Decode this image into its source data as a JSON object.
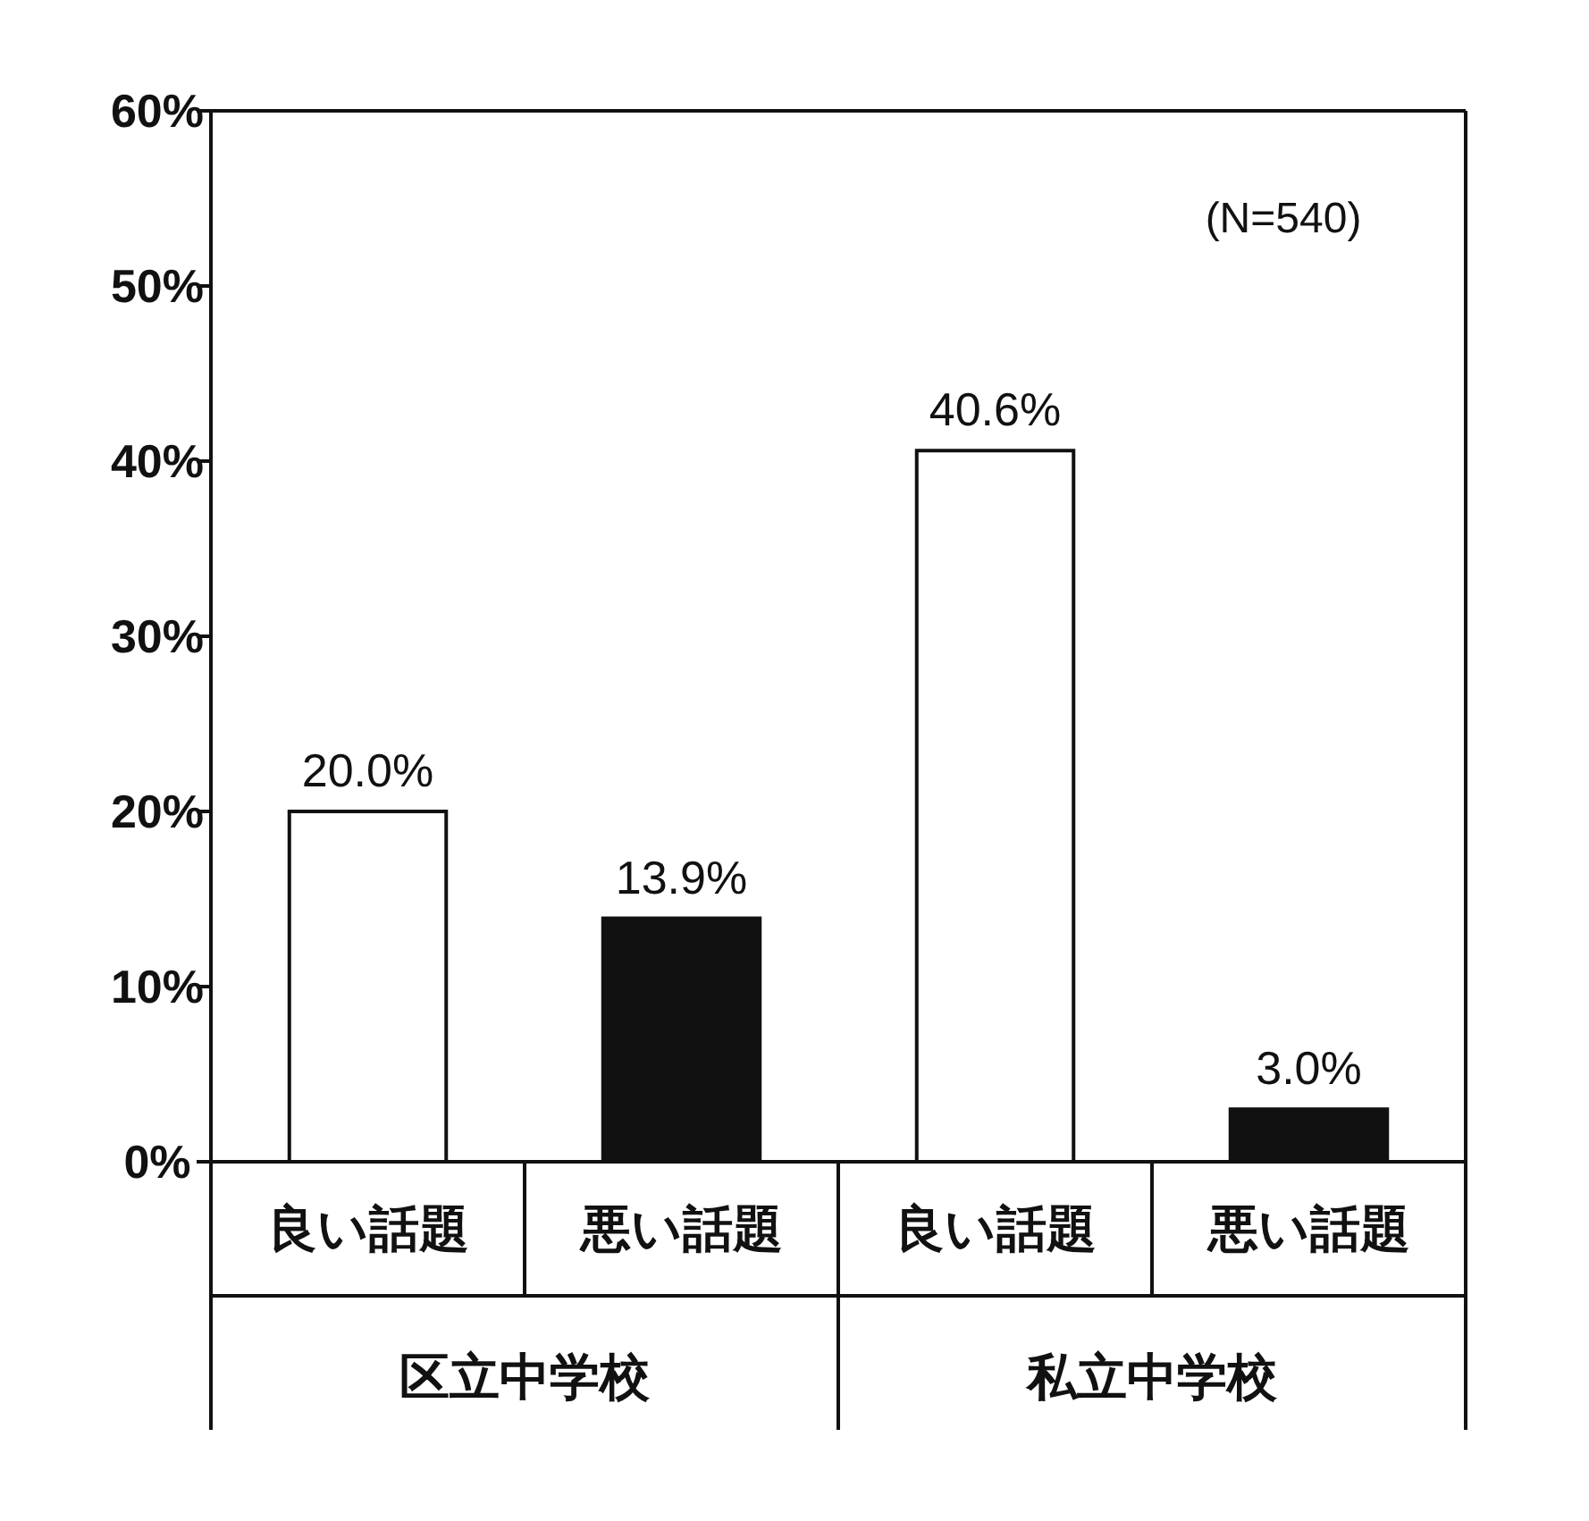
{
  "chart_data": {
    "type": "bar",
    "categories": [
      "良い話題",
      "悪い話題",
      "良い話題",
      "悪い話題"
    ],
    "values": [
      20.0,
      13.9,
      40.6,
      3.0
    ],
    "colors": [
      "#ffffff",
      "#111111",
      "#ffffff",
      "#111111"
    ],
    "value_labels": [
      "20.0%",
      "13.9%",
      "40.6%",
      "3.0%"
    ],
    "ylim": [
      0,
      60
    ],
    "yticks": [
      {
        "value": 0,
        "label": "0%"
      },
      {
        "value": 10,
        "label": "10%"
      },
      {
        "value": 20,
        "label": "20%"
      },
      {
        "value": 30,
        "label": "30%"
      },
      {
        "value": 40,
        "label": "40%"
      },
      {
        "value": 50,
        "label": "50%"
      },
      {
        "value": 60,
        "label": "60%"
      }
    ],
    "annotations": [
      "(N=540)",
      "区立中学校",
      "私立中学校"
    ]
  }
}
